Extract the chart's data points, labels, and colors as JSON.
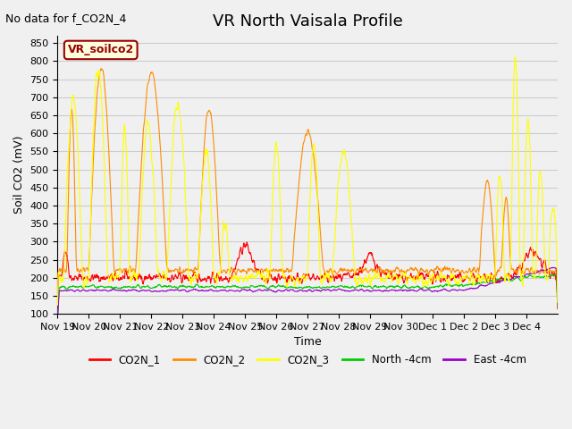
{
  "title": "VR North Vaisala Profile",
  "subtitle": "No data for f_CO2N_4",
  "ylabel": "Soil CO2 (mV)",
  "xlabel": "Time",
  "ylim": [
    100,
    870
  ],
  "yticks": [
    100,
    150,
    200,
    250,
    300,
    350,
    400,
    450,
    500,
    550,
    600,
    650,
    700,
    750,
    800,
    850
  ],
  "xtick_labels": [
    "Nov 19",
    "Nov 20",
    "Nov 21",
    "Nov 22",
    "Nov 23",
    "Nov 24",
    "Nov 25",
    "Nov 26",
    "Nov 27",
    "Nov 28",
    "Nov 29",
    "Nov 30",
    "Dec 1",
    "Dec 2",
    "Dec 3",
    "Dec 4"
  ],
  "legend_label": "VR_soilco2",
  "series_labels": [
    "CO2N_1",
    "CO2N_2",
    "CO2N_3",
    "North -4cm",
    "East -4cm"
  ],
  "series_colors": [
    "#ff0000",
    "#ff8c00",
    "#ffff00",
    "#00cc00",
    "#9900cc"
  ],
  "background_color": "#f0f0f0",
  "grid_color": "#cccccc",
  "title_fontsize": 13,
  "axis_fontsize": 9,
  "tick_fontsize": 8
}
